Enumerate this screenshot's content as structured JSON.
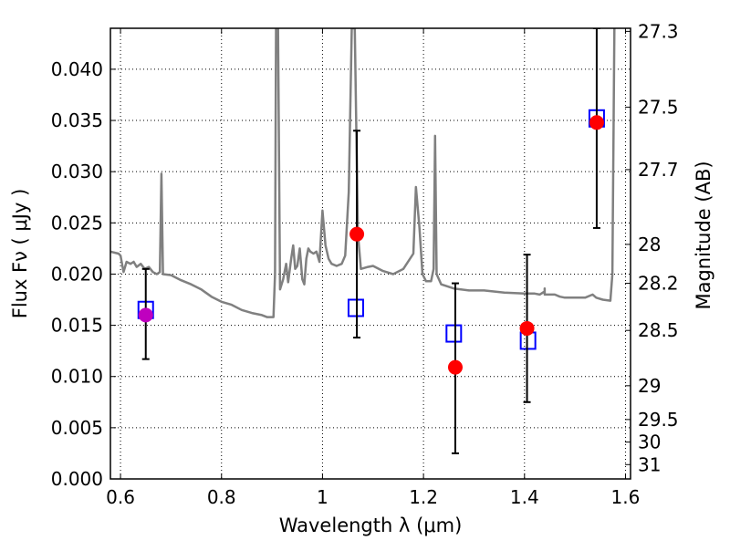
{
  "chart_data": {
    "type": "scatter",
    "title": "",
    "xlabel": "Wavelength  λ (μm)",
    "ylabel": "Flux  Fν  ( μJy )",
    "y2label": "Magnitude (AB)",
    "xlim": [
      0.58,
      1.61
    ],
    "ylim": [
      0.0,
      0.044
    ],
    "grid": true,
    "x_ticks": [
      {
        "value": 0.6,
        "label": "0.6"
      },
      {
        "value": 0.8,
        "label": "0.8"
      },
      {
        "value": 1.0,
        "label": "1"
      },
      {
        "value": 1.2,
        "label": "1.2"
      },
      {
        "value": 1.4,
        "label": "1.4"
      },
      {
        "value": 1.6,
        "label": "1.6"
      }
    ],
    "y_ticks": [
      {
        "value": 0.0,
        "label": "0.000"
      },
      {
        "value": 0.005,
        "label": "0.005"
      },
      {
        "value": 0.01,
        "label": "0.010"
      },
      {
        "value": 0.015,
        "label": "0.015"
      },
      {
        "value": 0.02,
        "label": "0.020"
      },
      {
        "value": 0.025,
        "label": "0.025"
      },
      {
        "value": 0.03,
        "label": "0.030"
      },
      {
        "value": 0.035,
        "label": "0.035"
      },
      {
        "value": 0.04,
        "label": "0.040"
      }
    ],
    "mag_ticks": [
      {
        "label": "27.3",
        "flux": 0.0437
      },
      {
        "label": "27.5",
        "flux": 0.0363
      },
      {
        "label": "27.7",
        "flux": 0.0302
      },
      {
        "label": "28",
        "flux": 0.0229
      },
      {
        "label": "28.2",
        "flux": 0.0191
      },
      {
        "label": "28.5",
        "flux": 0.0145
      },
      {
        "label": "29",
        "flux": 0.0091
      },
      {
        "label": "29.5",
        "flux": 0.0058
      },
      {
        "label": "30",
        "flux": 0.0036
      },
      {
        "label": "31",
        "flux": 0.0014
      }
    ],
    "series": [
      {
        "kind": "line",
        "color": "#808080",
        "points": [
          [
            0.58,
            0.0222
          ],
          [
            0.596,
            0.022
          ],
          [
            0.6,
            0.0218
          ],
          [
            0.606,
            0.0202
          ],
          [
            0.612,
            0.0212
          ],
          [
            0.62,
            0.021
          ],
          [
            0.626,
            0.0212
          ],
          [
            0.632,
            0.0207
          ],
          [
            0.64,
            0.021
          ],
          [
            0.648,
            0.0205
          ],
          [
            0.656,
            0.0207
          ],
          [
            0.664,
            0.0202
          ],
          [
            0.672,
            0.02
          ],
          [
            0.678,
            0.0202
          ],
          [
            0.681,
            0.0298
          ],
          [
            0.684,
            0.02
          ],
          [
            0.7,
            0.0199
          ],
          [
            0.72,
            0.0194
          ],
          [
            0.74,
            0.019
          ],
          [
            0.76,
            0.0185
          ],
          [
            0.78,
            0.0178
          ],
          [
            0.8,
            0.0173
          ],
          [
            0.82,
            0.017
          ],
          [
            0.84,
            0.0165
          ],
          [
            0.86,
            0.0162
          ],
          [
            0.88,
            0.016
          ],
          [
            0.89,
            0.0158
          ],
          [
            0.903,
            0.0158
          ],
          [
            0.906,
            0.02
          ],
          [
            0.908,
            0.044
          ],
          [
            0.912,
            0.044
          ],
          [
            0.916,
            0.0185
          ],
          [
            0.922,
            0.0195
          ],
          [
            0.928,
            0.021
          ],
          [
            0.932,
            0.0192
          ],
          [
            0.938,
            0.0215
          ],
          [
            0.942,
            0.0228
          ],
          [
            0.946,
            0.0205
          ],
          [
            0.95,
            0.0208
          ],
          [
            0.955,
            0.0225
          ],
          [
            0.96,
            0.0195
          ],
          [
            0.964,
            0.019
          ],
          [
            0.968,
            0.0215
          ],
          [
            0.972,
            0.0225
          ],
          [
            0.976,
            0.0222
          ],
          [
            0.982,
            0.022
          ],
          [
            0.988,
            0.0222
          ],
          [
            0.994,
            0.0212
          ],
          [
            1.0,
            0.0262
          ],
          [
            1.006,
            0.0228
          ],
          [
            1.012,
            0.0215
          ],
          [
            1.018,
            0.021
          ],
          [
            1.028,
            0.0208
          ],
          [
            1.038,
            0.021
          ],
          [
            1.045,
            0.0218
          ],
          [
            1.052,
            0.028
          ],
          [
            1.058,
            0.044
          ],
          [
            1.064,
            0.044
          ],
          [
            1.07,
            0.024
          ],
          [
            1.076,
            0.0205
          ],
          [
            1.09,
            0.0207
          ],
          [
            1.1,
            0.0208
          ],
          [
            1.12,
            0.0203
          ],
          [
            1.14,
            0.02
          ],
          [
            1.16,
            0.0205
          ],
          [
            1.18,
            0.022
          ],
          [
            1.185,
            0.0285
          ],
          [
            1.192,
            0.0245
          ],
          [
            1.198,
            0.02
          ],
          [
            1.205,
            0.0193
          ],
          [
            1.215,
            0.0193
          ],
          [
            1.22,
            0.0205
          ],
          [
            1.223,
            0.0335
          ],
          [
            1.226,
            0.02
          ],
          [
            1.235,
            0.019
          ],
          [
            1.26,
            0.0186
          ],
          [
            1.29,
            0.0184
          ],
          [
            1.32,
            0.0184
          ],
          [
            1.36,
            0.0182
          ],
          [
            1.4,
            0.0181
          ],
          [
            1.42,
            0.0181
          ],
          [
            1.43,
            0.018
          ],
          [
            1.44,
            0.0183
          ],
          [
            1.44,
            0.0186
          ],
          [
            1.44,
            0.018
          ],
          [
            1.46,
            0.018
          ],
          [
            1.47,
            0.0178
          ],
          [
            1.48,
            0.0177
          ],
          [
            1.5,
            0.0177
          ],
          [
            1.52,
            0.0177
          ],
          [
            1.535,
            0.018
          ],
          [
            1.542,
            0.0177
          ],
          [
            1.555,
            0.0175
          ],
          [
            1.57,
            0.0174
          ],
          [
            1.574,
            0.02
          ],
          [
            1.578,
            0.044
          ]
        ]
      },
      {
        "kind": "squares",
        "color": "#0000ff",
        "points": [
          [
            0.65,
            0.0165
          ],
          [
            1.066,
            0.0167
          ],
          [
            1.26,
            0.0142
          ],
          [
            1.407,
            0.0135
          ],
          [
            1.543,
            0.0352
          ]
        ]
      },
      {
        "kind": "errorbar_points",
        "color": "#ff0000",
        "points": [
          {
            "x": 1.068,
            "y": 0.0239,
            "ylo": 0.0138,
            "yhi": 0.034
          },
          {
            "x": 1.263,
            "y": 0.0109,
            "ylo": 0.0025,
            "yhi": 0.0191
          },
          {
            "x": 1.405,
            "y": 0.0147,
            "ylo": 0.0075,
            "yhi": 0.0219
          },
          {
            "x": 1.543,
            "y": 0.0348,
            "ylo": 0.0245,
            "yhi": 0.044
          }
        ]
      },
      {
        "kind": "errorbar_points",
        "color": "#bf00bf",
        "points": [
          {
            "x": 0.65,
            "y": 0.016,
            "ylo": 0.0117,
            "yhi": 0.0205
          }
        ]
      }
    ]
  }
}
